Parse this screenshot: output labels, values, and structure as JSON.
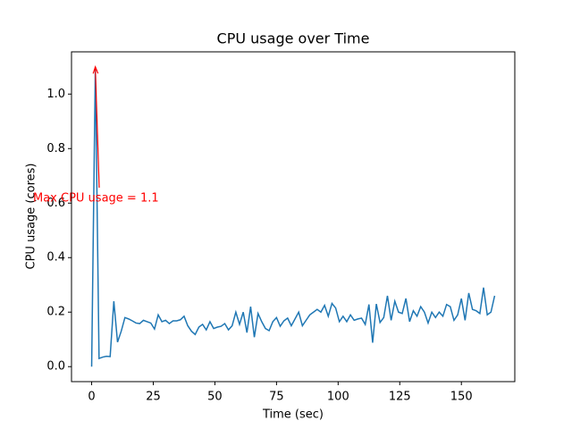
{
  "chart_data": {
    "type": "line",
    "title": "CPU usage over Time",
    "xlabel": "Time (sec)",
    "ylabel": "CPU usage (cores)",
    "annotation": "Max CPU usage = 1.1",
    "x": [
      0,
      1.5,
      3,
      4.5,
      6,
      7.5,
      9,
      10.5,
      12,
      13.5,
      15,
      16.5,
      18,
      19.5,
      21,
      22.5,
      24,
      25.5,
      27,
      28.5,
      30,
      31.5,
      33,
      34.5,
      36,
      37.5,
      39,
      40.5,
      42,
      43.5,
      45,
      46.5,
      48,
      49.5,
      51,
      52.5,
      54,
      55.5,
      57,
      58.5,
      60,
      61.5,
      63,
      64.5,
      66,
      67.5,
      69,
      70.5,
      72,
      73.5,
      75,
      76.5,
      78,
      79.5,
      81,
      82.5,
      84,
      85.5,
      87,
      88.5,
      90,
      91.5,
      93,
      94.5,
      96,
      97.5,
      99,
      100.5,
      102,
      103.5,
      105,
      106.5,
      108,
      109.5,
      111,
      112.5,
      114,
      115.5,
      117,
      118.5,
      120,
      121.5,
      123,
      124.5,
      126,
      127.5,
      129,
      130.5,
      132,
      133.5,
      135,
      136.5,
      138,
      139.5,
      141,
      142.5,
      144,
      145.5,
      147,
      148.5,
      150,
      151.5,
      153,
      154.5,
      156,
      157.5,
      159,
      160.5,
      162,
      163.5
    ],
    "series": [
      {
        "name": "CPU usage",
        "color": "#1f77b4",
        "values": [
          0,
          1.1,
          0.03,
          0.035,
          0.038,
          0.037,
          0.24,
          0.09,
          0.13,
          0.18,
          0.175,
          0.168,
          0.16,
          0.158,
          0.17,
          0.165,
          0.16,
          0.138,
          0.19,
          0.165,
          0.17,
          0.158,
          0.168,
          0.168,
          0.172,
          0.185,
          0.15,
          0.13,
          0.118,
          0.145,
          0.155,
          0.135,
          0.165,
          0.14,
          0.145,
          0.148,
          0.158,
          0.135,
          0.15,
          0.2,
          0.155,
          0.2,
          0.125,
          0.22,
          0.108,
          0.195,
          0.165,
          0.14,
          0.132,
          0.165,
          0.18,
          0.148,
          0.168,
          0.178,
          0.15,
          0.175,
          0.2,
          0.15,
          0.17,
          0.19,
          0.2,
          0.21,
          0.2,
          0.225,
          0.185,
          0.232,
          0.215,
          0.165,
          0.185,
          0.165,
          0.19,
          0.17,
          0.175,
          0.178,
          0.155,
          0.228,
          0.088,
          0.23,
          0.162,
          0.18,
          0.26,
          0.17,
          0.24,
          0.2,
          0.195,
          0.25,
          0.165,
          0.205,
          0.185,
          0.22,
          0.2,
          0.16,
          0.2,
          0.18,
          0.2,
          0.185,
          0.228,
          0.22,
          0.17,
          0.19,
          0.25,
          0.17,
          0.27,
          0.21,
          0.205,
          0.195,
          0.29,
          0.19,
          0.2,
          0.26
        ]
      }
    ],
    "annotation_color": "#ff0000",
    "xlim": [
      -8.175,
      171.675
    ],
    "ylim": [
      -0.055,
      1.155
    ],
    "xticks": [
      0,
      25,
      50,
      75,
      100,
      125,
      150
    ],
    "yticks": [
      {
        "value": 0,
        "label": "0.0"
      },
      {
        "value": 0.2,
        "label": "0.2"
      },
      {
        "value": 0.4,
        "label": "0.4"
      },
      {
        "value": 0.6,
        "label": "0.6"
      },
      {
        "value": 0.8,
        "label": "0.8"
      },
      {
        "value": 1.0,
        "label": "1.0"
      }
    ],
    "grid": false
  }
}
